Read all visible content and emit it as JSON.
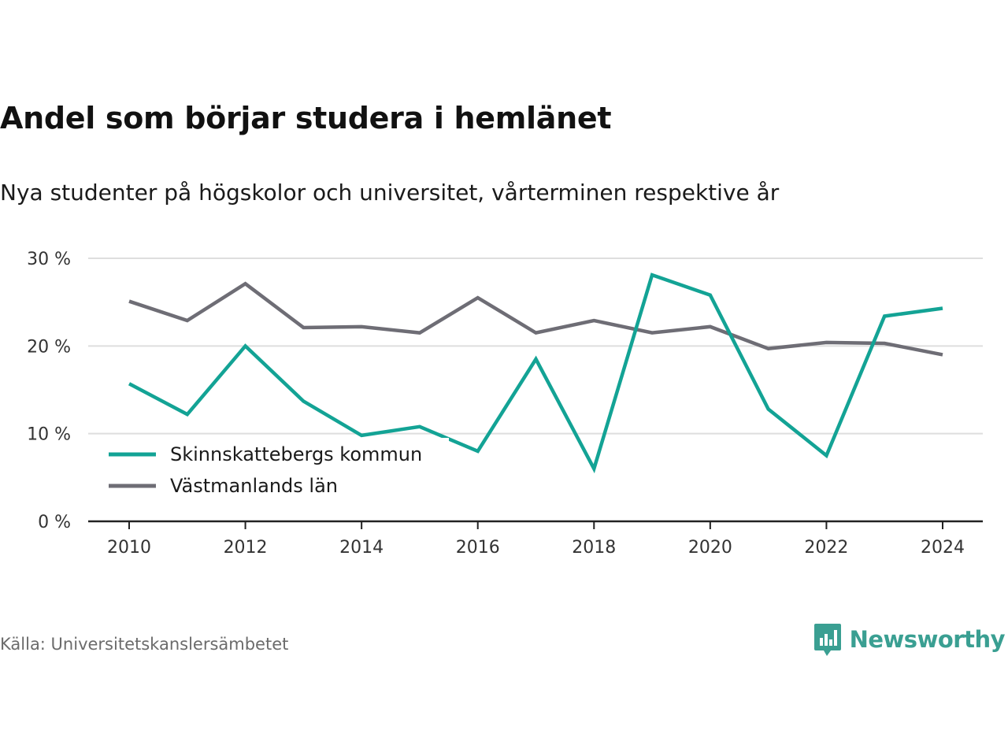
{
  "title": "Andel som börjar studera i hemlänet",
  "subtitle": "Nya studenter på högskolor och universitet, vårterminen respektive år",
  "source": "Källa: Universitetskanslersämbetet",
  "brand": {
    "name": "Newsworthy",
    "icon": "newsworthy-logo-icon",
    "color": "#3a9f92"
  },
  "chart_data": {
    "type": "line",
    "x": [
      2010,
      2011,
      2012,
      2013,
      2014,
      2015,
      2016,
      2017,
      2018,
      2019,
      2020,
      2021,
      2022,
      2023,
      2024
    ],
    "x_ticks": [
      "2010",
      "2012",
      "2014",
      "2016",
      "2018",
      "2020",
      "2022",
      "2024"
    ],
    "y_ticks": [
      "0 %",
      "10 %",
      "20 %",
      "30 %"
    ],
    "ylim": [
      0,
      30
    ],
    "grid": true,
    "legend_position": "bottom-left",
    "series": [
      {
        "name": "Skinnskattebergs kommun",
        "color": "#13a395",
        "values": [
          15.7,
          12.2,
          20.0,
          13.7,
          9.8,
          10.8,
          8.0,
          18.5,
          6.0,
          28.1,
          25.8,
          12.8,
          7.5,
          23.4,
          24.3
        ]
      },
      {
        "name": "Västmanlands län",
        "color": "#6e6d75",
        "values": [
          25.1,
          22.9,
          27.1,
          22.1,
          22.2,
          21.5,
          25.5,
          21.5,
          22.9,
          21.5,
          22.2,
          19.7,
          20.4,
          20.3,
          19.0
        ]
      }
    ]
  }
}
